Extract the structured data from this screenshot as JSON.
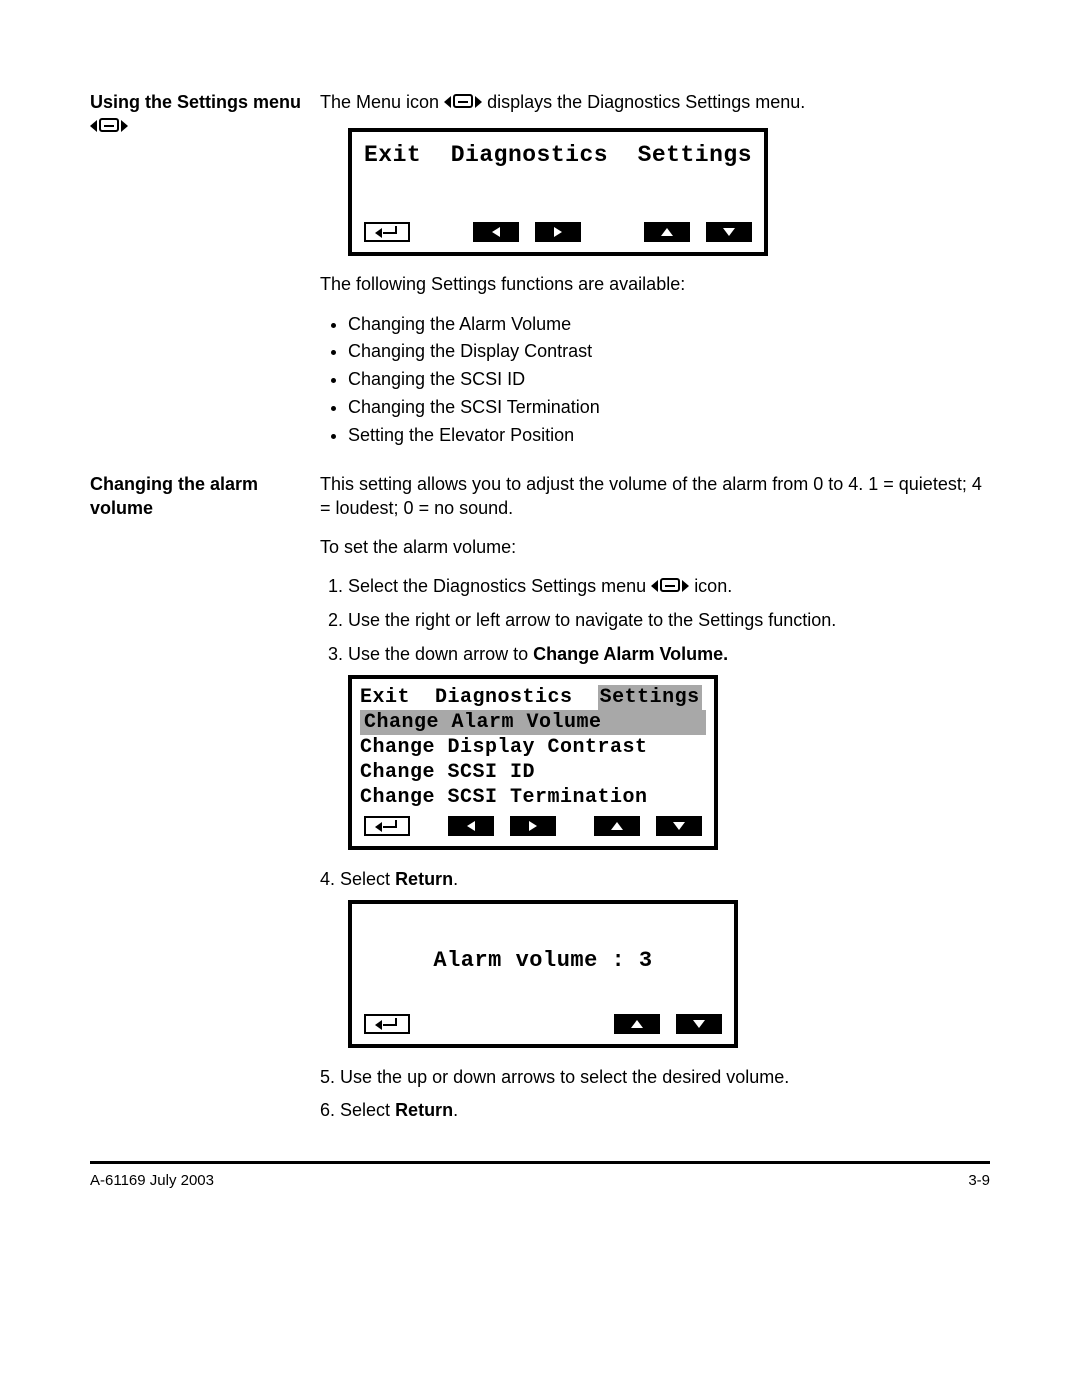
{
  "colors": {
    "text": "#000000",
    "bg": "#ffffff",
    "highlight": "#a8a8a8"
  },
  "sideHeadings": {
    "settingsMenu": "Using the Settings menu",
    "alarmVolume": "Changing the alarm volume"
  },
  "intro": {
    "line1a": "The Menu icon ",
    "line1b": " displays the Diagnostics Settings menu.",
    "availableIntro": "The following Settings functions are available:"
  },
  "lcd1": {
    "exit": "Exit",
    "diag": "Diagnostics",
    "settings": "Settings"
  },
  "settingsFunctions": [
    "Changing the Alarm Volume",
    "Changing the Display Contrast",
    "Changing the SCSI ID",
    "Changing the SCSI Termination",
    "Setting the Elevator Position"
  ],
  "alarm": {
    "p1": "This setting allows you to adjust the volume of the alarm from 0 to 4. 1 = quietest; 4 = loudest; 0 = no sound.",
    "p2": "To set the alarm volume:",
    "step1a": "Select the Diagnostics Settings menu ",
    "step1b": " icon.",
    "step2": "Use the right or left arrow to navigate to the Settings function.",
    "step3a": "Use the down arrow to ",
    "step3b": "Change Alarm Volume.",
    "step4a": "Select ",
    "step4b": "Return",
    "step4c": ".",
    "step5": "Use the up or down arrows to select the desired volume.",
    "step6a": "Select ",
    "step6b": "Return",
    "step6c": "."
  },
  "lcd2": {
    "row1exit": "Exit",
    "row1diag": "Diagnostics",
    "row1settings": "Settings",
    "row2": "Change Alarm Volume",
    "row3": "Change Display Contrast",
    "row4": "Change SCSI ID",
    "row5": "Change SCSI Termination"
  },
  "lcd3": {
    "label": "Alarm volume : 3"
  },
  "footer": {
    "left": "A-61169 July 2003",
    "right": "3-9"
  }
}
